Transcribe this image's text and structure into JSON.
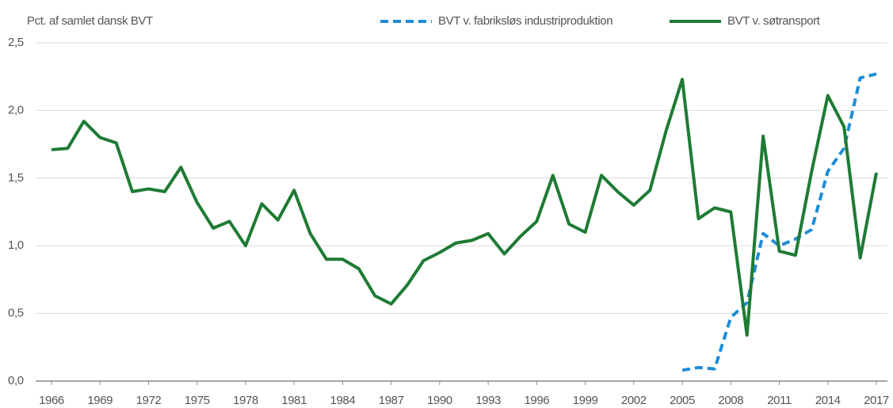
{
  "chart_data": {
    "type": "line",
    "ylabel": "Pct. af samlet dansk BVT",
    "x": [
      1966,
      1967,
      1968,
      1969,
      1970,
      1971,
      1972,
      1973,
      1974,
      1975,
      1976,
      1977,
      1978,
      1979,
      1980,
      1981,
      1982,
      1983,
      1984,
      1985,
      1986,
      1987,
      1988,
      1989,
      1990,
      1991,
      1992,
      1993,
      1994,
      1995,
      1996,
      1997,
      1998,
      1999,
      2000,
      2001,
      2002,
      2003,
      2004,
      2005,
      2006,
      2007,
      2008,
      2009,
      2010,
      2011,
      2012,
      2013,
      2014,
      2015,
      2016,
      2017
    ],
    "series": [
      {
        "name": "BVT v. fabriksløs industriproduktion",
        "color": "#1f8dd6",
        "dashed": true,
        "values": [
          null,
          null,
          null,
          null,
          null,
          null,
          null,
          null,
          null,
          null,
          null,
          null,
          null,
          null,
          null,
          null,
          null,
          null,
          null,
          null,
          null,
          null,
          null,
          null,
          null,
          null,
          null,
          null,
          null,
          null,
          null,
          null,
          null,
          null,
          null,
          null,
          null,
          null,
          null,
          0.08,
          0.1,
          0.09,
          0.47,
          0.58,
          1.09,
          1.0,
          1.05,
          1.12,
          1.55,
          1.72,
          2.24,
          2.27
        ]
      },
      {
        "name": "BVT v. søtransport",
        "color": "#1e7b34",
        "dashed": false,
        "values": [
          1.71,
          1.72,
          1.92,
          1.8,
          1.76,
          1.4,
          1.42,
          1.4,
          1.58,
          1.32,
          1.13,
          1.18,
          1.0,
          1.31,
          1.19,
          1.41,
          1.09,
          0.9,
          0.9,
          0.83,
          0.63,
          0.57,
          0.71,
          0.89,
          0.95,
          1.02,
          1.04,
          1.09,
          0.94,
          1.07,
          1.18,
          1.52,
          1.16,
          1.1,
          1.52,
          1.4,
          1.3,
          1.41,
          1.85,
          2.23,
          1.2,
          1.28,
          1.25,
          0.34,
          1.81,
          0.96,
          0.93,
          1.55,
          2.11,
          1.88,
          0.91,
          1.54
        ]
      }
    ],
    "xlim": [
      1966,
      2017
    ],
    "xticks": [
      1966,
      1969,
      1972,
      1975,
      1978,
      1981,
      1984,
      1987,
      1990,
      1993,
      1996,
      1999,
      2002,
      2005,
      2008,
      2011,
      2014,
      2017
    ],
    "ylim": [
      0,
      2.5
    ],
    "yticks": [
      {
        "value": 0,
        "label": "0,0"
      },
      {
        "value": 0.5,
        "label": "0,5"
      },
      {
        "value": 1,
        "label": "1,0"
      },
      {
        "value": 1.5,
        "label": "1,5"
      },
      {
        "value": 2,
        "label": "2,0"
      },
      {
        "value": 2.5,
        "label": "2,5"
      }
    ],
    "grid": true,
    "legend": "top-right"
  }
}
